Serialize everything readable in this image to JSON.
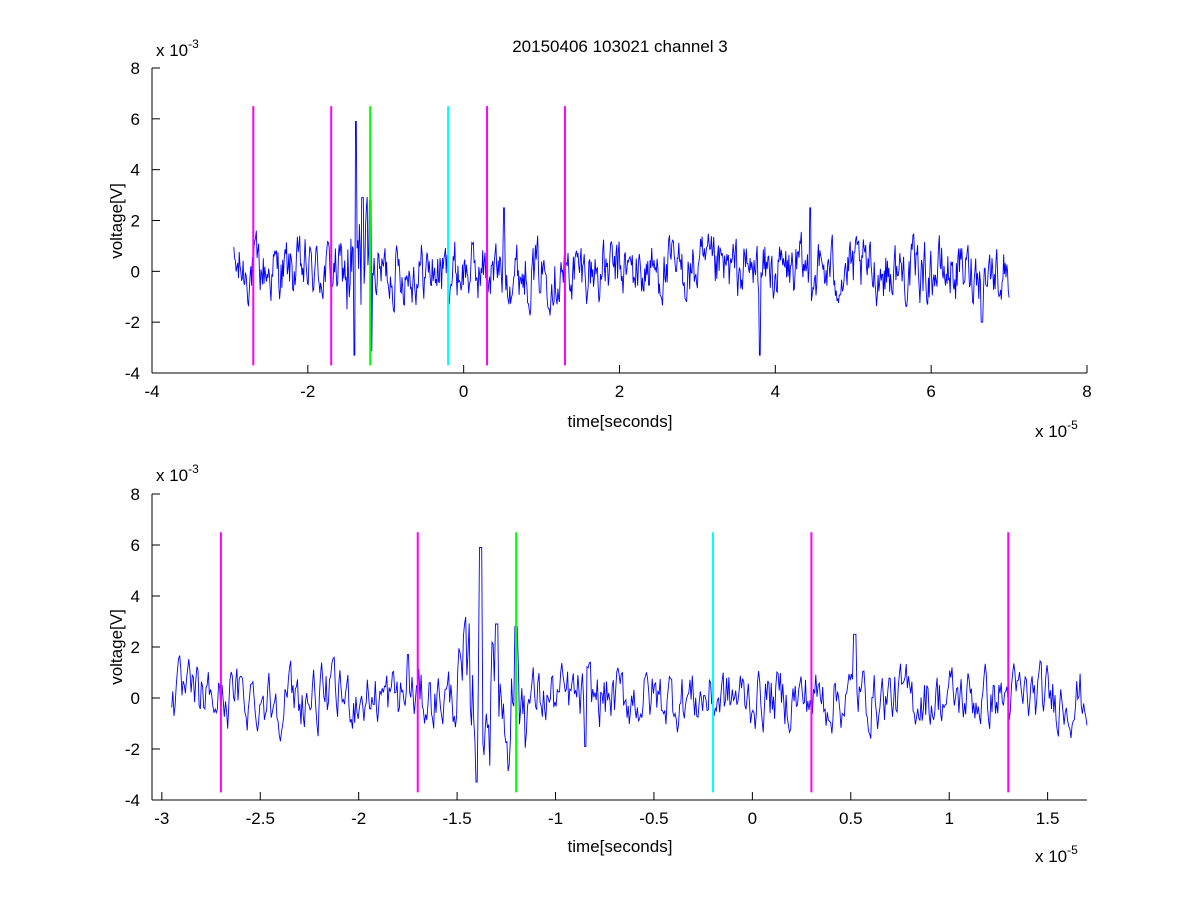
{
  "figure": {
    "title": "20150406 103021 channel 3"
  },
  "chart_data": [
    {
      "type": "line",
      "title": "20150406 103021 channel 3",
      "xlabel": "time[seconds]",
      "ylabel": "voltage[V]",
      "x_exponent_label": "x 10",
      "x_exponent": "-5",
      "y_exponent_label": "x 10",
      "y_exponent": "-3",
      "xlim": [
        -4,
        8
      ],
      "ylim": [
        -4,
        8
      ],
      "xticks": [
        -4,
        -2,
        0,
        2,
        4,
        6,
        8
      ],
      "xtick_labels": [
        "-4",
        "-2",
        "0",
        "2",
        "4",
        "6",
        "8"
      ],
      "yticks": [
        -4,
        -2,
        0,
        2,
        4,
        6,
        8
      ],
      "ytick_labels": [
        "-4",
        "-2",
        "0",
        "2",
        "4",
        "6",
        "8"
      ],
      "grid": false,
      "signal": {
        "color": "#0000ff",
        "x_range": [
          -2.95,
          7.0
        ],
        "features": [
          {
            "x": -1.38,
            "y": 5.9
          },
          {
            "x": -1.4,
            "y": -3.3
          },
          {
            "x": -1.3,
            "y": 2.9
          },
          {
            "x": -1.2,
            "y": 2.8
          },
          {
            "x": 0.52,
            "y": 2.5
          },
          {
            "x": 3.8,
            "y": -3.3
          },
          {
            "x": 4.45,
            "y": 2.5
          },
          {
            "x": 6.65,
            "y": -2.0
          }
        ]
      },
      "markers": [
        {
          "x": -2.7,
          "color": "#ff00ff"
        },
        {
          "x": -1.7,
          "color": "#ff00ff"
        },
        {
          "x": -1.2,
          "color": "#00ff00"
        },
        {
          "x": -0.2,
          "color": "#00ffff"
        },
        {
          "x": 0.3,
          "color": "#ff00ff"
        },
        {
          "x": 1.3,
          "color": "#ff00ff"
        }
      ],
      "marker_yrange": [
        -3.7,
        6.5
      ]
    },
    {
      "type": "line",
      "title": "",
      "xlabel": "time[seconds]",
      "ylabel": "voltage[V]",
      "x_exponent_label": "x 10",
      "x_exponent": "-5",
      "y_exponent_label": "x 10",
      "y_exponent": "-3",
      "xlim": [
        -3.05,
        1.7
      ],
      "ylim": [
        -4,
        8
      ],
      "xticks": [
        -3,
        -2.5,
        -2,
        -1.5,
        -1,
        -0.5,
        0,
        0.5,
        1,
        1.5
      ],
      "xtick_labels": [
        "-3",
        "-2.5",
        "-2",
        "-1.5",
        "-1",
        "-0.5",
        "0",
        "0.5",
        "1",
        "1.5"
      ],
      "yticks": [
        -4,
        -2,
        0,
        2,
        4,
        6,
        8
      ],
      "ytick_labels": [
        "-4",
        "-2",
        "0",
        "2",
        "4",
        "6",
        "8"
      ],
      "grid": false,
      "signal": {
        "color": "#0000ff",
        "x_range": [
          -2.95,
          1.7
        ],
        "features": [
          {
            "x": -1.38,
            "y": 5.9
          },
          {
            "x": -1.4,
            "y": -3.3
          },
          {
            "x": -1.3,
            "y": 2.9
          },
          {
            "x": -1.2,
            "y": 2.8
          },
          {
            "x": 0.52,
            "y": 2.5
          },
          {
            "x": -0.85,
            "y": -1.9
          },
          {
            "x": -1.75,
            "y": 1.7
          }
        ]
      },
      "markers": [
        {
          "x": -2.7,
          "color": "#ff00ff"
        },
        {
          "x": -1.7,
          "color": "#ff00ff"
        },
        {
          "x": -1.2,
          "color": "#00ff00"
        },
        {
          "x": -0.2,
          "color": "#00ffff"
        },
        {
          "x": 0.3,
          "color": "#ff00ff"
        },
        {
          "x": 1.3,
          "color": "#ff00ff"
        }
      ],
      "marker_yrange": [
        -3.7,
        6.5
      ]
    }
  ]
}
